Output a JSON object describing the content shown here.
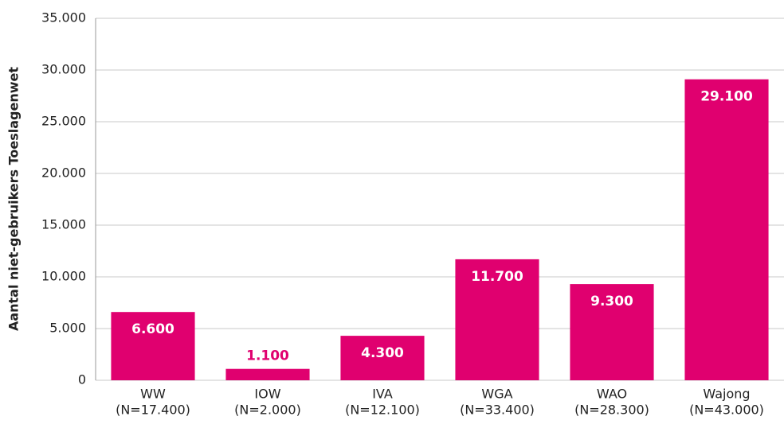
{
  "chart_data": {
    "type": "bar",
    "y_label": "Aantal niet-gebruikers Toeslagenwet",
    "categories": [
      [
        "WW",
        "(N=17.400)"
      ],
      [
        "IOW",
        "(N=2.000)"
      ],
      [
        "IVA",
        "(N=12.100)"
      ],
      [
        "WGA",
        "(N=33.400)"
      ],
      [
        "WAO",
        "(N=28.300)"
      ],
      [
        "Wajong",
        "(N=43.000)"
      ]
    ],
    "values": [
      6600,
      1100,
      4300,
      11700,
      9300,
      29100
    ],
    "value_labels": [
      "6.600",
      "1.100",
      "4.300",
      "11.700",
      "9.300",
      "29.100"
    ],
    "color": "#e0006f",
    "ylim": [
      0,
      35000
    ],
    "yticks": [
      0,
      {
        "value": 5000,
        "label": "5.000"
      },
      {
        "value": 10000,
        "label": "10.000"
      },
      {
        "value": 15000,
        "label": "15.000"
      },
      {
        "value": 20000,
        "label": "20.000"
      },
      {
        "value": 25000,
        "label": "25.000"
      },
      {
        "value": 30000,
        "label": "30.000"
      },
      {
        "value": 35000,
        "label": "35.000"
      }
    ],
    "grid": true
  }
}
